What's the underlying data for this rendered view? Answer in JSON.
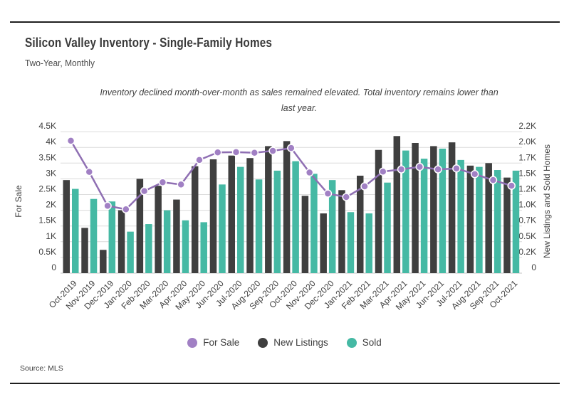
{
  "page": {
    "title": "Silicon Valley Inventory - Single-Family Homes",
    "subtitle": "Two-Year, Monthly",
    "annotation": "Inventory declined month-over-month as sales remained elevated. Total inventory remains lower than last year.",
    "source": "Source: MLS"
  },
  "colors": {
    "for_sale": "#A180C4",
    "for_sale_line": "#8F6FB3",
    "new_listings": "#3F3F3F",
    "sold": "#45B9A4",
    "gridline": "#DCDCDC",
    "axis_line": "#C4C4C4",
    "rule": "#1F1F1F"
  },
  "legend": [
    {
      "label": "For Sale",
      "series": "for_sale",
      "color": "#A180C4"
    },
    {
      "label": "New Listings",
      "series": "new_listings",
      "color": "#3F3F3F"
    },
    {
      "label": "Sold",
      "series": "sold",
      "color": "#45B9A4"
    }
  ],
  "chart_data": {
    "type": "combo-bar-line",
    "title": "Silicon Valley Inventory - Single-Family Homes",
    "subtitle": "Two-Year, Monthly",
    "grid": true,
    "legend_position": "bottom",
    "categories": [
      "Oct-2019",
      "Nov-2019",
      "Dec-2019",
      "Jan-2020",
      "Feb-2020",
      "Mar-2020",
      "Apr-2020",
      "May-2020",
      "Jun-2020",
      "Jul-2020",
      "Aug-2020",
      "Sep-2020",
      "Oct-2020",
      "Nov-2020",
      "Dec-2020",
      "Jan-2021",
      "Feb-2021",
      "Mar-2021",
      "Apr-2021",
      "May-2021",
      "Jun-2021",
      "Jul-2021",
      "Aug-2021",
      "Sep-2021",
      "Oct-2021"
    ],
    "left_axis": {
      "title": "For Sale",
      "min": 0,
      "max": 4500,
      "ticks": [
        "0",
        "0.5K",
        "1K",
        "1.5K",
        "2K",
        "2.5K",
        "3K",
        "3.5K",
        "4K",
        "4.5K"
      ]
    },
    "right_axis": {
      "title": "New Listings and Sold Homes",
      "min": 0,
      "max": 2250,
      "ticks": [
        "0",
        "0.2K",
        "0.5K",
        "0.7K",
        "1.0K",
        "1.2K",
        "1.5K",
        "1.7K",
        "2.0K",
        "2.2K"
      ]
    },
    "series": [
      {
        "name": "For Sale",
        "type": "line",
        "axis": "left",
        "color": "#A180C4",
        "values": [
          4210,
          3220,
          2140,
          2030,
          2610,
          2890,
          2820,
          3600,
          3840,
          3850,
          3830,
          3890,
          3980,
          3200,
          2530,
          2420,
          2760,
          3230,
          3300,
          3380,
          3300,
          3330,
          3150,
          2960,
          2780
        ]
      },
      {
        "name": "New Listings",
        "type": "bar",
        "axis": "right",
        "color": "#3F3F3F",
        "values": [
          1480,
          720,
          370,
          1000,
          1500,
          1390,
          1170,
          1700,
          1810,
          1870,
          1830,
          2020,
          2100,
          1230,
          950,
          1320,
          1550,
          1960,
          2180,
          2070,
          2020,
          2080,
          1710,
          1750,
          1520
        ]
      },
      {
        "name": "Sold",
        "type": "bar",
        "axis": "right",
        "color": "#45B9A4",
        "values": [
          1340,
          1180,
          1140,
          660,
          780,
          1000,
          840,
          810,
          1410,
          1690,
          1490,
          1630,
          1780,
          1580,
          1480,
          970,
          950,
          1440,
          1950,
          1820,
          1980,
          1800,
          1690,
          1640,
          1630
        ]
      }
    ]
  }
}
